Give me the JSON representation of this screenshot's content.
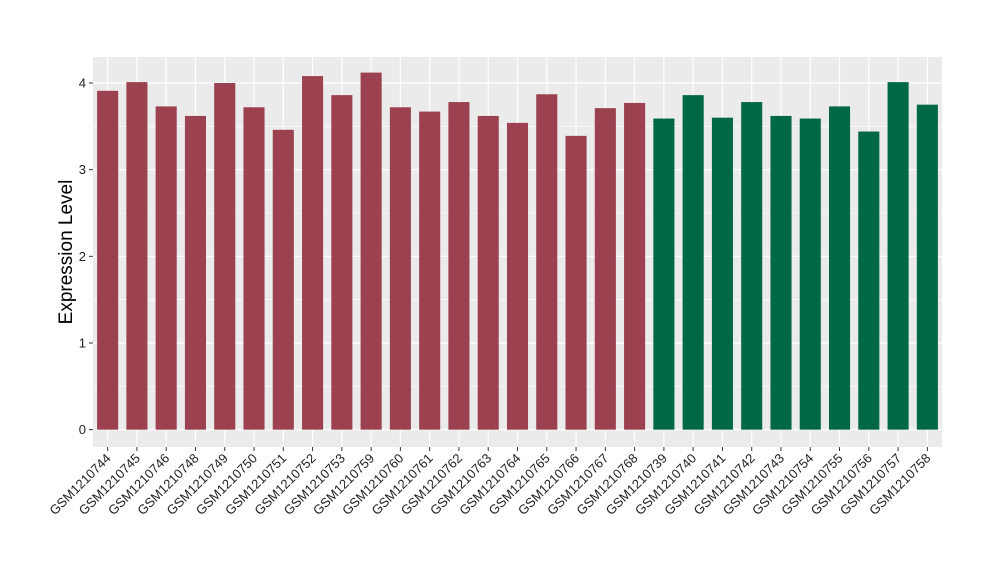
{
  "chart_data": {
    "type": "bar",
    "ylabel": "Expression Level",
    "xlabel": "",
    "ylim": [
      -0.2,
      4.3
    ],
    "yticks": [
      0,
      1,
      2,
      3,
      4
    ],
    "grid": true,
    "panel_background": "#ebebeb",
    "grid_color": "#ffffff",
    "group_colors": {
      "group1": "#9b4150",
      "group2": "#006847"
    },
    "categories": [
      "GSM1210744",
      "GSM1210745",
      "GSM1210746",
      "GSM1210748",
      "GSM1210749",
      "GSM1210750",
      "GSM1210751",
      "GSM1210752",
      "GSM1210753",
      "GSM1210759",
      "GSM1210760",
      "GSM1210761",
      "GSM1210762",
      "GSM1210763",
      "GSM1210764",
      "GSM1210765",
      "GSM1210766",
      "GSM1210767",
      "GSM1210768",
      "GSM1210739",
      "GSM1210740",
      "GSM1210741",
      "GSM1210742",
      "GSM1210743",
      "GSM1210754",
      "GSM1210755",
      "GSM1210756",
      "GSM1210757",
      "GSM1210758"
    ],
    "values": [
      3.91,
      4.01,
      3.73,
      3.62,
      4.0,
      3.72,
      3.46,
      4.08,
      3.86,
      4.12,
      3.72,
      3.67,
      3.78,
      3.62,
      3.54,
      3.87,
      3.39,
      3.71,
      3.77,
      3.59,
      3.86,
      3.6,
      3.78,
      3.62,
      3.59,
      3.73,
      3.44,
      4.01,
      3.75
    ],
    "groups": [
      "group1",
      "group1",
      "group1",
      "group1",
      "group1",
      "group1",
      "group1",
      "group1",
      "group1",
      "group1",
      "group1",
      "group1",
      "group1",
      "group1",
      "group1",
      "group1",
      "group1",
      "group1",
      "group1",
      "group2",
      "group2",
      "group2",
      "group2",
      "group2",
      "group2",
      "group2",
      "group2",
      "group2",
      "group2"
    ]
  }
}
